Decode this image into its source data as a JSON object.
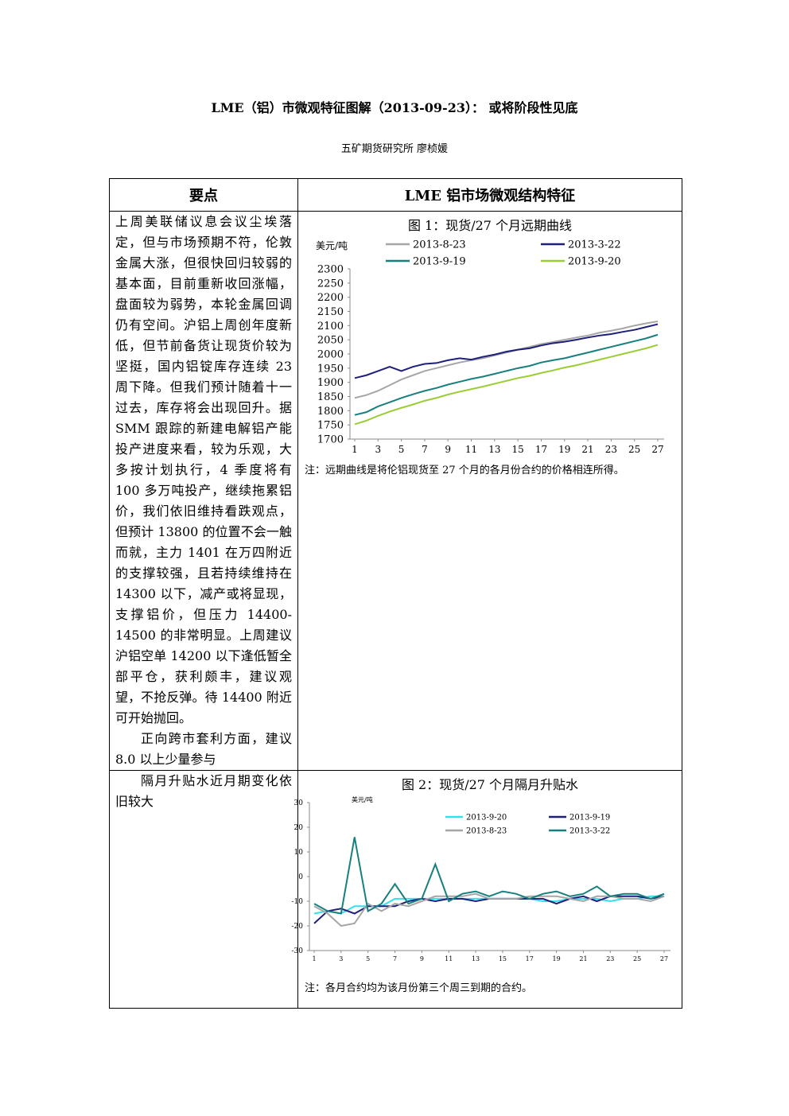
{
  "header": {
    "title": "LME（铝）市微观特征图解（2013-09-23）： 或将阶段性见底",
    "author": "五矿期货研究所  廖桢媛"
  },
  "table": {
    "headers": [
      "要点",
      "LME 铝市场微观结构特征"
    ],
    "rows": [
      {
        "text": [
          "上周美联储议息会议尘埃落定，但与市场预期不符，伦敦金属大涨，但很快回归较弱的基本面，目前重新收回涨幅，盘面较为弱势，本轮金属回调仍有空间。沪铝上周创年度新低，但节前备货让现货价较为坚挺，国内铝锭库存连续 23 周下降。但我们预计随着十一过去，库存将会出现回升。据 SMM 跟踪的新建电解铝产能投产进度来看，较为乐观，大多按计划执行，4 季度将有 100 多万吨投产，继续拖累铝价，我们依旧维持看跌观点，但预计 13800 的位置不会一触而就，主力 1401 在万四附近的支撑较强，且若持续维持在 14300 以下，减产或将显现，支撑铝价，但压力 14400-14500 的非常明显。上周建议沪铝空单 14200 以下逢低暂全部平仓，获利颇丰，建议观望，不抢反弹。待 14400 附近可开始抛回。",
          "正向跨市套利方面，建议 8.0 以上少量参与"
        ],
        "figure_title": "图 1：现货/27 个月远期曲线",
        "note": "注：远期曲线是将伦铝现货至 27 个月的各月份合约的价格相连所得。",
        "chart_data": {
          "type": "line",
          "y_label": "美元/吨",
          "x": [
            1,
            2,
            3,
            4,
            5,
            6,
            7,
            8,
            9,
            10,
            11,
            12,
            13,
            14,
            15,
            16,
            17,
            18,
            19,
            20,
            21,
            22,
            23,
            24,
            25,
            26,
            27
          ],
          "xlim": [
            1,
            27
          ],
          "xticks": [
            1,
            3,
            5,
            7,
            9,
            11,
            13,
            15,
            17,
            19,
            21,
            23,
            25,
            27
          ],
          "ylim": [
            1700,
            2300
          ],
          "yticks": [
            1700,
            1750,
            1800,
            1850,
            1900,
            1950,
            2000,
            2050,
            2100,
            2150,
            2200,
            2250,
            2300
          ],
          "series": [
            {
              "name": "2013-8-23",
              "color": "#a6a6a6",
              "values": [
                1845,
                1855,
                1870,
                1890,
                1910,
                1925,
                1940,
                1950,
                1960,
                1970,
                1978,
                1985,
                1995,
                2005,
                2015,
                2025,
                2035,
                2042,
                2050,
                2058,
                2065,
                2075,
                2082,
                2090,
                2100,
                2108,
                2115
              ]
            },
            {
              "name": "2013-3-22",
              "color": "#1f1f7a",
              "values": [
                1915,
                1925,
                1940,
                1955,
                1940,
                1955,
                1965,
                1968,
                1978,
                1985,
                1980,
                1990,
                1998,
                2008,
                2015,
                2020,
                2030,
                2038,
                2043,
                2050,
                2058,
                2065,
                2070,
                2078,
                2085,
                2095,
                2105
              ]
            },
            {
              "name": "2013-9-19",
              "color": "#17807e",
              "values": [
                1785,
                1795,
                1815,
                1830,
                1845,
                1858,
                1870,
                1880,
                1892,
                1902,
                1912,
                1920,
                1930,
                1940,
                1950,
                1958,
                1970,
                1978,
                1985,
                1995,
                2005,
                2015,
                2025,
                2035,
                2045,
                2055,
                2068
              ]
            },
            {
              "name": "2013-9-20",
              "color": "#9acd32",
              "values": [
                1752,
                1765,
                1782,
                1797,
                1810,
                1822,
                1835,
                1845,
                1857,
                1867,
                1876,
                1885,
                1895,
                1905,
                1915,
                1923,
                1933,
                1942,
                1952,
                1960,
                1970,
                1980,
                1990,
                2000,
                2010,
                2020,
                2032
              ]
            }
          ]
        }
      },
      {
        "text": [
          "隔月升贴水近月期变化依旧较大"
        ],
        "figure_title": "图 2：现货/27 个月隔月升贴水",
        "note": "注：各月合约均为该月份第三个周三到期的合约。",
        "chart_data": {
          "type": "line",
          "y_label": "美元/吨",
          "x": [
            1,
            2,
            3,
            4,
            5,
            6,
            7,
            8,
            9,
            10,
            11,
            12,
            13,
            14,
            15,
            16,
            17,
            18,
            19,
            20,
            21,
            22,
            23,
            24,
            25,
            26,
            27
          ],
          "xlim": [
            1,
            27
          ],
          "xticks": [
            1,
            3,
            5,
            7,
            9,
            11,
            13,
            15,
            17,
            19,
            21,
            23,
            25,
            27
          ],
          "ylim": [
            -30,
            30
          ],
          "yticks": [
            -30,
            -20,
            -10,
            0,
            10,
            20,
            30
          ],
          "series": [
            {
              "name": "2013-9-20",
              "color": "#33e0f0",
              "values": [
                -15,
                -14,
                -15,
                -12,
                -12,
                -12,
                -9,
                -9,
                -9,
                -9,
                -9,
                -9,
                -9,
                -9,
                -9,
                -9,
                -9,
                -10,
                -10,
                -9,
                -9,
                -9,
                -10,
                -9,
                -9,
                -8,
                -8
              ]
            },
            {
              "name": "2013-9-19",
              "color": "#1f1f7a",
              "values": [
                -19,
                -14,
                -13,
                -15,
                -12,
                -12,
                -12,
                -10,
                -9,
                -10,
                -9,
                -9,
                -10,
                -9,
                -9,
                -9,
                -9,
                -9,
                -11,
                -9,
                -8,
                -10,
                -8,
                -8,
                -8,
                -9,
                -8
              ]
            },
            {
              "name": "2013-8-23",
              "color": "#a6a6a6",
              "values": [
                -12,
                -15,
                -20,
                -19,
                -11,
                -14,
                -11,
                -12,
                -10,
                -8,
                -8,
                -8,
                -7,
                -9,
                -9,
                -9,
                -8,
                -8,
                -8,
                -9,
                -10,
                -8,
                -8,
                -9,
                -9,
                -10,
                -8
              ]
            },
            {
              "name": "2013-3-22",
              "color": "#17807e",
              "values": [
                -11,
                -14,
                -15,
                16,
                -14,
                -11,
                -3,
                -11,
                -9,
                5,
                -10,
                -7,
                -6,
                -8,
                -6,
                -7,
                -9,
                -7,
                -6,
                -8,
                -7,
                -4,
                -8,
                -7,
                -7,
                -9,
                -7
              ]
            }
          ]
        }
      }
    ]
  }
}
